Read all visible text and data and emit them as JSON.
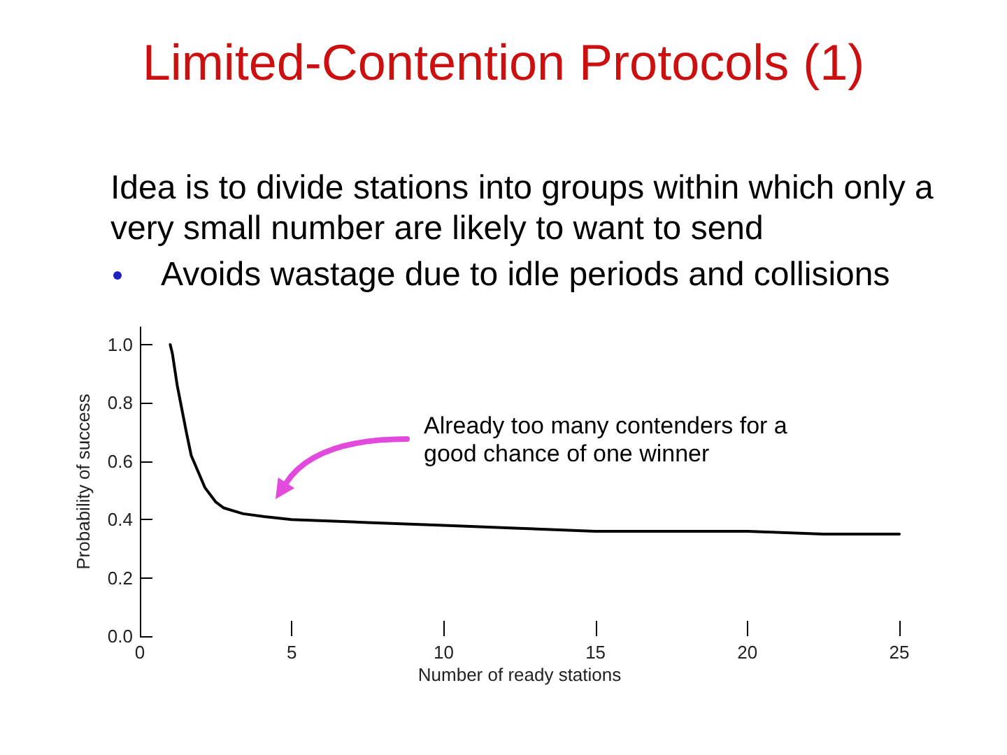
{
  "chart_data": {
    "type": "line",
    "title": "Limited-Contention Protocols (1)",
    "subtitle": "Idea is to divide stations into groups within which only a very small number are likely to want to send",
    "annotations": [
      "Avoids wastage due to idle periods and collisions",
      "Already too many contenders for a good chance of one winner"
    ],
    "xlabel": "Number of ready stations",
    "ylabel": "Probability of success",
    "x": [
      1,
      1.07,
      1.23,
      1.38,
      1.53,
      1.69,
      2.14,
      2.5,
      2.76,
      3.07,
      3.4,
      4.1,
      5,
      7.5,
      10,
      12.5,
      15,
      17.5,
      20,
      22.5,
      25
    ],
    "series": [
      {
        "color": "#000000",
        "values": [
          1.0,
          0.97,
          0.86,
          0.78,
          0.7,
          0.62,
          0.51,
          0.46,
          0.44,
          0.43,
          0.42,
          0.41,
          0.4,
          0.39,
          0.38,
          0.37,
          0.36,
          0.36,
          0.36,
          0.35,
          0.35
        ]
      }
    ],
    "xlim": [
      0,
      25
    ],
    "ylim": [
      0,
      1.06
    ],
    "xticks": [
      0,
      5,
      10,
      15,
      20,
      25
    ],
    "yticks": [
      {
        "value": 0,
        "label": "0.0"
      },
      0.2,
      0.4,
      0.6,
      0.8,
      {
        "value": 1,
        "label": "1.0"
      }
    ],
    "marker": "none",
    "line_style": "solid"
  }
}
